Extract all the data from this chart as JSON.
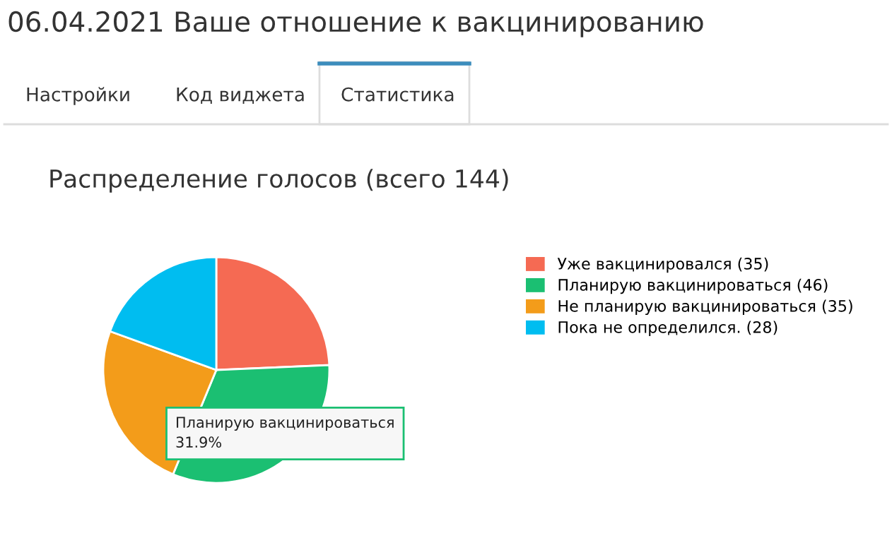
{
  "chart_data": {
    "type": "pie",
    "title": "Распределение голосов (всего 144)",
    "categories": [
      "Уже вакцинировался (35)",
      "Планирую вакцинироваться (46)",
      "Не планирую вакцинироваться (35)",
      "Пока не определился. (28)"
    ],
    "values": [
      35,
      46,
      35,
      28
    ],
    "colors": [
      "#f56a53",
      "#1bbf72",
      "#f39c1a",
      "#00bdf0"
    ],
    "legend": "right",
    "annotations": [
      "06.04.2021 Ваше отношение к вакцинированию",
      "Настройки",
      "Код виджета",
      "Статистика",
      "Планирую вакцинироваться\n31.9%"
    ]
  }
}
